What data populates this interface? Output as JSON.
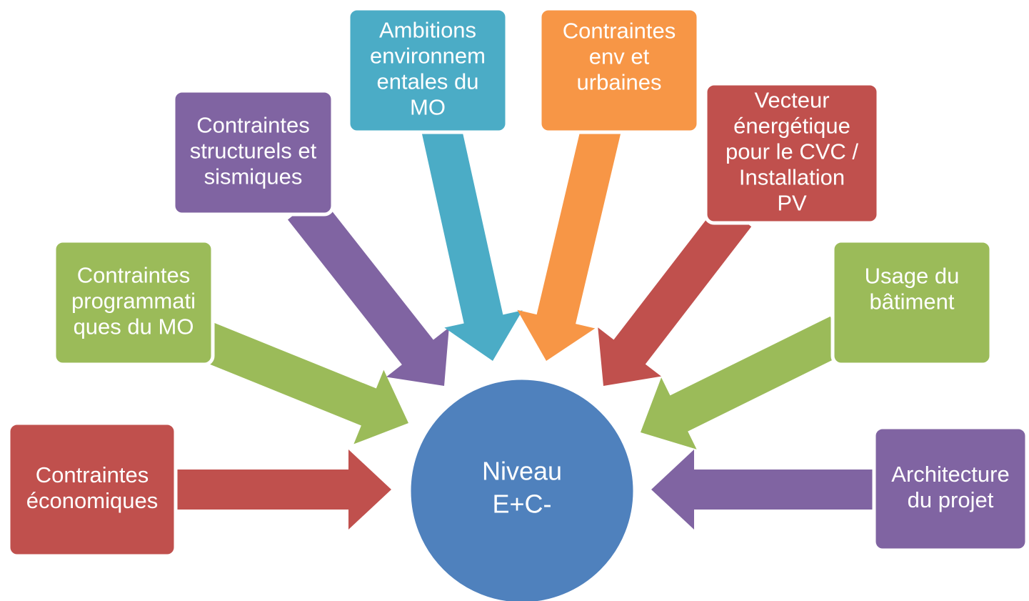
{
  "center": {
    "lines": [
      "Niveau",
      "E+C-"
    ]
  },
  "nodes": [
    {
      "lines": [
        "Contraintes",
        "économiques"
      ]
    },
    {
      "lines": [
        "Contraintes",
        "programmati",
        "ques du MO"
      ]
    },
    {
      "lines": [
        "Contraintes",
        "structurels et",
        "sismiques"
      ]
    },
    {
      "lines": [
        "Ambitions",
        "environnem",
        "entales du",
        "MO"
      ]
    },
    {
      "lines": [
        "Contraintes",
        "env et",
        "urbaines"
      ]
    },
    {
      "lines": [
        "Vecteur",
        "énergétique",
        "pour le CVC /",
        "Installation",
        "PV"
      ]
    },
    {
      "lines": [
        "Usage du",
        "bâtiment"
      ]
    },
    {
      "lines": [
        "Architecture",
        "du projet"
      ]
    }
  ]
}
